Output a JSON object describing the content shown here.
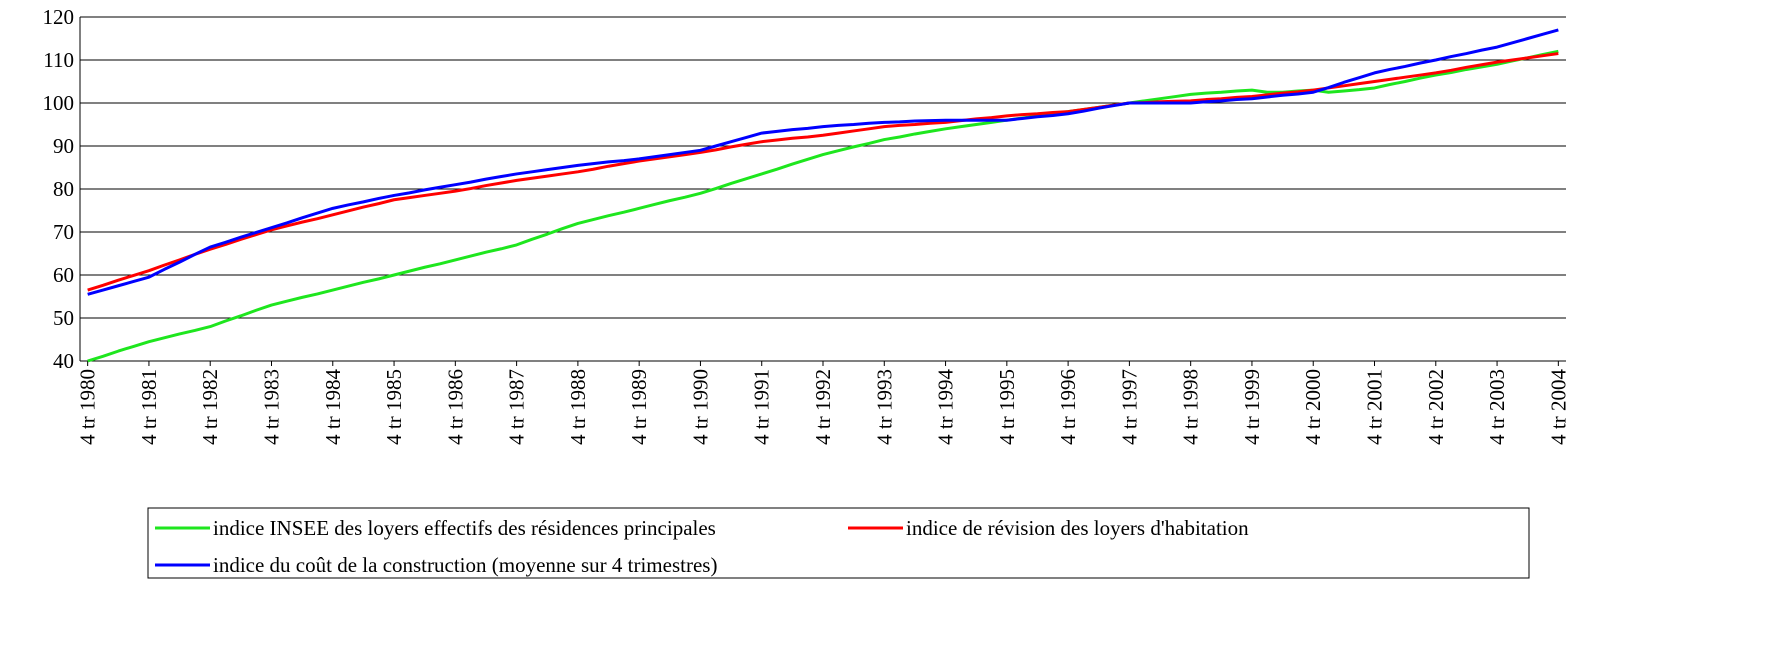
{
  "chart_data": {
    "type": "line",
    "categories": [
      "4 tr 1980",
      null,
      null,
      null,
      "4 tr 1981",
      null,
      null,
      null,
      "4 tr 1982",
      null,
      null,
      null,
      "4 tr 1983",
      null,
      null,
      null,
      "4 tr 1984",
      null,
      null,
      null,
      "4 tr 1985",
      null,
      null,
      null,
      "4 tr 1986",
      null,
      null,
      null,
      "4 tr 1987",
      null,
      null,
      null,
      "4 tr 1988",
      null,
      null,
      null,
      "4 tr 1989",
      null,
      null,
      null,
      "4 tr 1990",
      null,
      null,
      null,
      "4 tr 1991",
      null,
      null,
      null,
      "4 tr 1992",
      null,
      null,
      null,
      "4 tr 1993",
      null,
      null,
      null,
      "4 tr 1994",
      null,
      null,
      null,
      "4 tr 1995",
      null,
      null,
      null,
      "4 tr 1996",
      null,
      null,
      null,
      "4 tr 1997",
      null,
      null,
      null,
      "4 tr 1998",
      null,
      null,
      null,
      "4 tr 1999",
      null,
      null,
      null,
      "4 tr 2000",
      null,
      null,
      null,
      "4 tr 2001",
      null,
      null,
      null,
      "4 tr 2002",
      null,
      null,
      null,
      "4 tr 2003",
      null,
      null,
      null,
      "4 tr 2004"
    ],
    "series": [
      {
        "name": "indice INSEE des loyers effectifs des résidences principales",
        "color": "#1ee61e",
        "values": [
          40,
          41.1,
          42.3,
          43.4,
          44.5,
          45.4,
          46.3,
          47.1,
          48,
          49.3,
          50.5,
          51.8,
          53,
          53.9,
          54.8,
          55.6,
          56.5,
          57.4,
          58.3,
          59.1,
          60,
          60.9,
          61.8,
          62.6,
          63.5,
          64.4,
          65.3,
          66.1,
          67,
          68.3,
          69.5,
          70.8,
          72,
          72.9,
          73.8,
          74.6,
          75.5,
          76.4,
          77.3,
          78.1,
          79,
          80.1,
          81.3,
          82.4,
          83.5,
          84.6,
          85.8,
          86.9,
          88,
          88.9,
          89.8,
          90.6,
          91.5,
          92.1,
          92.8,
          93.4,
          94,
          94.5,
          95,
          95.5,
          96,
          96.5,
          97,
          97.5,
          98,
          98.5,
          99,
          99.5,
          100,
          100.5,
          101,
          101.5,
          102,
          102.3,
          102.5,
          102.8,
          103,
          102.5,
          102.5,
          102.8,
          103,
          102.5,
          102.8,
          103.1,
          103.5,
          104.3,
          105,
          105.8,
          106.5,
          107.1,
          107.8,
          108.4,
          109,
          109.8,
          110.5,
          111.3,
          112
        ]
      },
      {
        "name": "indice de révision des loyers d'habitation",
        "color": "#ff0000",
        "values": [
          56.5,
          57.6,
          58.8,
          59.9,
          61,
          62.3,
          63.5,
          64.8,
          66,
          67.1,
          68.3,
          69.4,
          70.5,
          71.4,
          72.3,
          73.1,
          74,
          74.9,
          75.8,
          76.6,
          77.5,
          78,
          78.5,
          79,
          79.5,
          80.1,
          80.8,
          81.4,
          82,
          82.5,
          83,
          83.5,
          84,
          84.6,
          85.3,
          85.9,
          86.5,
          87,
          87.5,
          88,
          88.5,
          89.1,
          89.8,
          90.4,
          91,
          91.4,
          91.8,
          92.1,
          92.5,
          93,
          93.5,
          94,
          94.5,
          94.8,
          95,
          95.3,
          95.5,
          95.9,
          96.3,
          96.6,
          97,
          97.3,
          97.5,
          97.8,
          98,
          98.5,
          99,
          99.5,
          100,
          100.1,
          100.3,
          100.4,
          100.5,
          100.8,
          101,
          101.3,
          101.5,
          101.9,
          102.3,
          102.6,
          103,
          103.5,
          104,
          104.5,
          105,
          105.5,
          106,
          106.5,
          107,
          107.6,
          108.3,
          108.9,
          109.5,
          110,
          110.5,
          111,
          111.5
        ]
      },
      {
        "name": "indice du coût de la construction (moyenne sur 4 trimestres)",
        "color": "#0000ff",
        "values": [
          55.5,
          56.5,
          57.5,
          58.5,
          59.5,
          61.3,
          63,
          64.8,
          66.5,
          67.6,
          68.8,
          69.9,
          71,
          72.1,
          73.3,
          74.4,
          75.5,
          76.3,
          77,
          77.8,
          78.5,
          79.1,
          79.8,
          80.4,
          81,
          81.6,
          82.3,
          82.9,
          83.5,
          84,
          84.5,
          85,
          85.5,
          85.9,
          86.3,
          86.6,
          87,
          87.5,
          88,
          88.5,
          89,
          90,
          91,
          92,
          93,
          93.4,
          93.8,
          94.1,
          94.5,
          94.8,
          95,
          95.3,
          95.5,
          95.6,
          95.8,
          95.9,
          96,
          96,
          96,
          96,
          96,
          96.4,
          96.8,
          97.1,
          97.5,
          98.1,
          98.8,
          99.4,
          100,
          100,
          100,
          100,
          100,
          100.3,
          100.5,
          100.8,
          101,
          101.4,
          101.8,
          102.1,
          102.5,
          103.6,
          104.8,
          105.9,
          107,
          107.8,
          108.5,
          109.3,
          110,
          110.8,
          111.5,
          112.3,
          113,
          114,
          115,
          116,
          117
        ]
      }
    ],
    "ylim": [
      40,
      120
    ],
    "yticks": [
      40,
      50,
      60,
      70,
      80,
      90,
      100,
      110,
      120
    ],
    "grid": true,
    "legend": "bottom"
  }
}
